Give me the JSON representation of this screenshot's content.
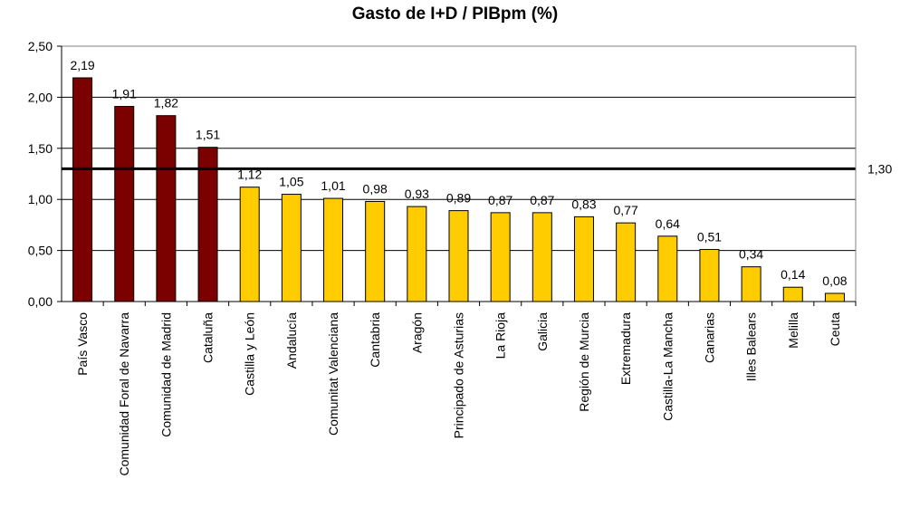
{
  "chart_data": {
    "type": "bar",
    "title": "Gasto de I+D / PIBpm (%)",
    "xlabel": "",
    "ylabel": "",
    "ylim": [
      0,
      2.5
    ],
    "yticks": [
      "0,00",
      "0,50",
      "1,00",
      "1,50",
      "2,00",
      "2,50"
    ],
    "grid": true,
    "categories": [
      "País Vasco",
      "Comunidad Foral de Navarra",
      "Comunidad de Madrid",
      "Cataluña",
      "Castilla y León",
      "Andalucía",
      "Comunitat Valenciana",
      "Cantabria",
      "Aragón",
      "Principado de Asturias",
      "La Rioja",
      "Galicia",
      "Región de Murcia",
      "Extremadura",
      "Castilla-La Mancha",
      "Canarias",
      "Illes Balears",
      "Melilla",
      "Ceuta"
    ],
    "values": [
      2.19,
      1.91,
      1.82,
      1.51,
      1.12,
      1.05,
      1.01,
      0.98,
      0.93,
      0.89,
      0.87,
      0.87,
      0.83,
      0.77,
      0.64,
      0.51,
      0.34,
      0.14,
      0.08
    ],
    "value_labels": [
      "2,19",
      "1,91",
      "1,82",
      "1,51",
      "1,12",
      "1,05",
      "1,01",
      "0,98",
      "0,93",
      "0,89",
      "0,87",
      "0,87",
      "0,83",
      "0,77",
      "0,64",
      "0,51",
      "0,34",
      "0,14",
      "0,08"
    ],
    "reference_line": {
      "value": 1.3,
      "label": "1,30"
    },
    "colors": {
      "above": "#7B0000",
      "below": "#FFCC00",
      "outline": "#000000",
      "grid": "#000000"
    },
    "color_groups": [
      "above",
      "above",
      "above",
      "above",
      "below",
      "below",
      "below",
      "below",
      "below",
      "below",
      "below",
      "below",
      "below",
      "below",
      "below",
      "below",
      "below",
      "below",
      "below"
    ]
  }
}
